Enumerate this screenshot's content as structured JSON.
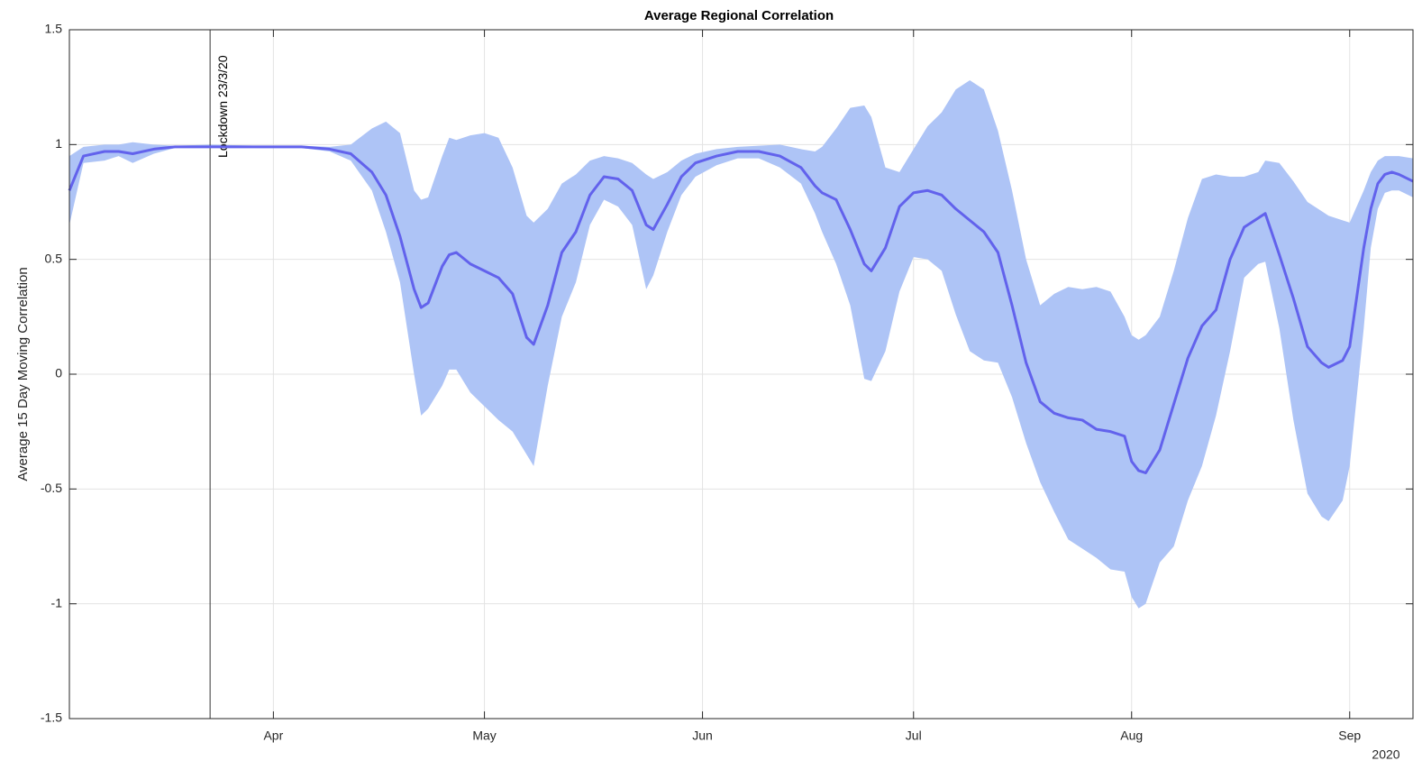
{
  "chart_data": {
    "type": "line",
    "title": "Average Regional Correlation",
    "y_label": "Average 15 Day Moving Correlation",
    "x_secondary_label": "2020",
    "x": [
      63,
      65,
      68,
      70,
      72,
      75,
      78,
      83,
      90,
      96,
      100,
      103,
      106,
      108,
      110,
      112,
      113,
      114,
      116,
      117,
      118,
      120,
      122,
      124,
      126,
      128,
      129,
      131,
      133,
      135,
      137,
      139,
      141,
      143,
      145,
      146,
      148,
      150,
      152,
      155,
      158,
      161,
      164,
      167,
      169,
      170,
      172,
      174,
      176,
      177,
      179,
      181,
      183,
      185,
      187,
      189,
      191,
      193,
      195,
      197,
      199,
      201,
      203,
      205,
      207,
      209,
      211,
      213,
      214,
      215,
      216,
      218,
      220,
      222,
      224,
      226,
      228,
      230,
      232,
      233,
      235,
      237,
      239,
      241,
      242,
      244,
      245,
      247,
      248,
      249,
      250,
      251,
      252,
      254
    ],
    "series": [
      {
        "color": "#6262ec",
        "values": [
          0.8,
          0.95,
          0.97,
          0.97,
          0.96,
          0.98,
          0.99,
          0.99,
          0.99,
          0.99,
          0.98,
          0.96,
          0.88,
          0.78,
          0.6,
          0.37,
          0.29,
          0.31,
          0.47,
          0.52,
          0.53,
          0.48,
          0.45,
          0.42,
          0.35,
          0.16,
          0.13,
          0.3,
          0.53,
          0.62,
          0.78,
          0.86,
          0.85,
          0.8,
          0.65,
          0.63,
          0.74,
          0.86,
          0.92,
          0.95,
          0.97,
          0.97,
          0.95,
          0.9,
          0.82,
          0.79,
          0.76,
          0.63,
          0.48,
          0.45,
          0.55,
          0.73,
          0.79,
          0.8,
          0.78,
          0.72,
          0.67,
          0.62,
          0.53,
          0.3,
          0.05,
          -0.12,
          -0.17,
          -0.19,
          -0.2,
          -0.24,
          -0.25,
          -0.27,
          -0.38,
          -0.42,
          -0.43,
          -0.33,
          -0.13,
          0.07,
          0.21,
          0.28,
          0.5,
          0.64,
          0.68,
          0.7,
          0.52,
          0.33,
          0.12,
          0.05,
          0.03,
          0.06,
          0.12,
          0.55,
          0.72,
          0.83,
          0.87,
          0.88,
          0.87,
          0.84
        ]
      }
    ],
    "band": {
      "color": "#aec4f6",
      "upper": [
        0.95,
        0.99,
        1.0,
        1.0,
        1.01,
        1.0,
        0.995,
        1.0,
        0.995,
        0.995,
        0.99,
        1.0,
        1.07,
        1.1,
        1.05,
        0.8,
        0.76,
        0.77,
        0.95,
        1.03,
        1.02,
        1.04,
        1.05,
        1.03,
        0.9,
        0.69,
        0.66,
        0.72,
        0.83,
        0.87,
        0.93,
        0.95,
        0.94,
        0.92,
        0.87,
        0.85,
        0.88,
        0.93,
        0.96,
        0.98,
        0.99,
        0.995,
        1.0,
        0.98,
        0.97,
        0.99,
        1.07,
        1.16,
        1.17,
        1.12,
        0.9,
        0.88,
        0.98,
        1.08,
        1.14,
        1.24,
        1.28,
        1.24,
        1.06,
        0.8,
        0.5,
        0.3,
        0.35,
        0.38,
        0.37,
        0.38,
        0.36,
        0.25,
        0.17,
        0.15,
        0.17,
        0.25,
        0.45,
        0.68,
        0.85,
        0.87,
        0.86,
        0.86,
        0.88,
        0.93,
        0.92,
        0.84,
        0.75,
        0.71,
        0.69,
        0.67,
        0.66,
        0.8,
        0.88,
        0.93,
        0.95,
        0.95,
        0.95,
        0.94
      ],
      "lower": [
        0.65,
        0.92,
        0.93,
        0.95,
        0.92,
        0.96,
        0.985,
        0.99,
        0.985,
        0.985,
        0.97,
        0.93,
        0.8,
        0.62,
        0.4,
        0.0,
        -0.18,
        -0.15,
        -0.05,
        0.02,
        0.02,
        -0.08,
        -0.14,
        -0.2,
        -0.25,
        -0.35,
        -0.4,
        -0.05,
        0.25,
        0.4,
        0.65,
        0.76,
        0.73,
        0.65,
        0.37,
        0.43,
        0.62,
        0.78,
        0.86,
        0.91,
        0.94,
        0.94,
        0.9,
        0.83,
        0.7,
        0.62,
        0.48,
        0.3,
        -0.02,
        -0.03,
        0.1,
        0.36,
        0.51,
        0.5,
        0.45,
        0.26,
        0.1,
        0.06,
        0.05,
        -0.1,
        -0.3,
        -0.47,
        -0.6,
        -0.72,
        -0.76,
        -0.8,
        -0.85,
        -0.86,
        -0.97,
        -1.02,
        -1.0,
        -0.82,
        -0.75,
        -0.55,
        -0.4,
        -0.18,
        0.1,
        0.42,
        0.48,
        0.49,
        0.2,
        -0.2,
        -0.52,
        -0.62,
        -0.64,
        -0.55,
        -0.4,
        0.2,
        0.55,
        0.72,
        0.79,
        0.8,
        0.8,
        0.77
      ]
    },
    "annotation": {
      "text": "Lockdown 23/3/20",
      "x": 83
    },
    "xlim": [
      63,
      254
    ],
    "xticks": [
      {
        "value": 92,
        "label": "Apr"
      },
      {
        "value": 122,
        "label": "May"
      },
      {
        "value": 153,
        "label": "Jun"
      },
      {
        "value": 183,
        "label": "Jul"
      },
      {
        "value": 214,
        "label": "Aug"
      },
      {
        "value": 245,
        "label": "Sep"
      }
    ],
    "ylim": [
      -1.5,
      1.5
    ],
    "yticks": [
      -1.5,
      -1,
      -0.5,
      0,
      0.5,
      1,
      1.5
    ],
    "grid": true
  }
}
